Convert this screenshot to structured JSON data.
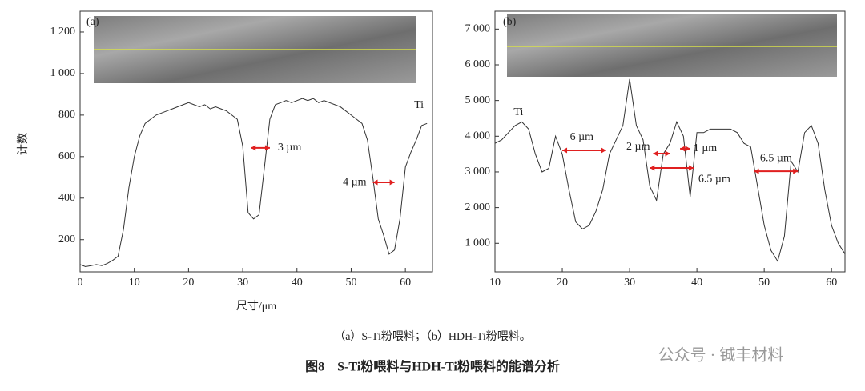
{
  "chart_data": [
    {
      "type": "line",
      "panel_label": "(a)",
      "ylabel": "计数",
      "x": [
        0,
        1,
        2,
        3,
        4,
        5,
        6,
        7,
        8,
        9,
        10,
        11,
        12,
        13,
        14,
        15,
        16,
        17,
        18,
        19,
        20,
        21,
        22,
        23,
        24,
        25,
        26,
        27,
        28,
        29,
        30,
        31,
        32,
        33,
        34,
        35,
        36,
        37,
        38,
        39,
        40,
        41,
        42,
        43,
        44,
        45,
        46,
        47,
        48,
        49,
        50,
        51,
        52,
        53,
        54,
        55,
        56,
        57,
        58,
        59,
        60,
        61,
        62,
        63,
        64
      ],
      "values": [
        80,
        70,
        75,
        80,
        75,
        85,
        100,
        120,
        250,
        450,
        600,
        700,
        760,
        780,
        800,
        810,
        820,
        830,
        840,
        850,
        860,
        850,
        840,
        850,
        830,
        840,
        830,
        820,
        800,
        780,
        650,
        330,
        300,
        320,
        550,
        780,
        850,
        860,
        870,
        860,
        870,
        880,
        870,
        880,
        860,
        870,
        860,
        850,
        840,
        820,
        800,
        780,
        760,
        680,
        500,
        300,
        220,
        130,
        150,
        300,
        550,
        620,
        680,
        750,
        760
      ],
      "color": "#333333",
      "xlim": [
        0,
        65
      ],
      "xticks": [
        0,
        10,
        20,
        30,
        40,
        50,
        60
      ],
      "ylim": [
        45,
        1300
      ],
      "yticks": [
        200,
        400,
        600,
        800,
        {
          "value": 1000,
          "label": "1 000"
        },
        {
          "value": 1200,
          "label": "1 200"
        }
      ],
      "annotations": [
        {
          "text": "3 µm",
          "x1": 31.5,
          "x2": 35,
          "y": 642
        },
        {
          "text": "4 µm",
          "x1": 54,
          "x2": 58,
          "y": 476
        },
        {
          "text": "Ti",
          "x": 62.5,
          "y": 846
        }
      ]
    },
    {
      "type": "line",
      "panel_label": "(b)",
      "x": [
        10,
        11,
        12,
        13,
        14,
        15,
        16,
        17,
        18,
        19,
        20,
        21,
        22,
        23,
        24,
        25,
        26,
        27,
        28,
        29,
        30,
        31,
        32,
        33,
        34,
        35,
        36,
        37,
        38,
        39,
        40,
        41,
        42,
        43,
        44,
        45,
        46,
        47,
        48,
        49,
        50,
        51,
        52,
        53,
        54,
        55,
        56,
        57,
        58,
        59,
        60,
        61,
        62
      ],
      "values": [
        3800,
        3900,
        4100,
        4300,
        4400,
        4200,
        3500,
        3000,
        3100,
        4000,
        3500,
        2500,
        1600,
        1400,
        1500,
        1900,
        2500,
        3500,
        3900,
        4300,
        5600,
        4300,
        3900,
        2600,
        2200,
        3500,
        3800,
        4400,
        4000,
        2300,
        4100,
        4100,
        4200,
        4200,
        4200,
        4200,
        4100,
        3800,
        3700,
        2600,
        1500,
        800,
        500,
        1200,
        3300,
        3000,
        4100,
        4300,
        3800,
        2500,
        1500,
        1000,
        700
      ],
      "color": "#333333",
      "xlim": [
        10,
        62
      ],
      "xticks": [
        10,
        20,
        30,
        40,
        50,
        60
      ],
      "ylim": [
        200,
        7500
      ],
      "yticks": [
        {
          "value": 1000,
          "label": "1 000"
        },
        {
          "value": 2000,
          "label": "2 000"
        },
        {
          "value": 3000,
          "label": "3 000"
        },
        {
          "value": 4000,
          "label": "4 000"
        },
        {
          "value": 5000,
          "label": "5 000"
        },
        {
          "value": 6000,
          "label": "6 000"
        },
        {
          "value": 7000,
          "label": "7 000"
        }
      ],
      "annotations": [
        {
          "text": "6 µm",
          "x1": 20,
          "x2": 26.5,
          "y": 3605
        },
        {
          "text": "2 µm",
          "x1": 33.5,
          "x2": 36,
          "y": 3515
        },
        {
          "text": "1 µm",
          "x1": 37.5,
          "x2": 39,
          "y": 3650
        },
        {
          "text": "6.5 µm",
          "x1": 33,
          "x2": 39.5,
          "y": 3110
        },
        {
          "text": "6.5 µm",
          "x1": 48.5,
          "x2": 55,
          "y": 3020
        },
        {
          "text": "Ti",
          "x": 13.5,
          "y": 4660
        }
      ]
    }
  ],
  "xlabel": "尺寸/μm",
  "caption": "（a）S-Ti粉喂料；（b）HDH-Ti粉喂料。",
  "figure_title": "图8　S-Ti粉喂料与HDH-Ti粉喂料的能谱分析",
  "watermark": "公众号 · 铖丰材料"
}
